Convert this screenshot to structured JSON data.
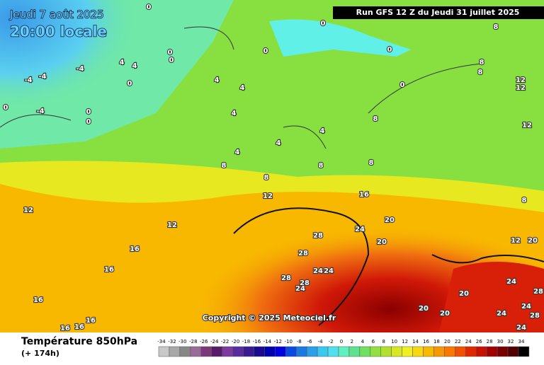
{
  "header": {
    "date": "Jeudi 7 août 2025",
    "time": "20:00 locale",
    "run": "Run GFS 12 Z du Jeudi 31 juillet 2025"
  },
  "map": {
    "copyright": "Copyright © 2025 Meteociel.fr",
    "contour_labels": [
      0,
      0,
      0,
      0,
      0,
      0,
      0,
      0,
      0,
      0,
      0,
      4,
      4,
      -4,
      -4,
      -4,
      -4,
      4,
      4,
      4,
      4,
      4,
      4,
      8,
      8,
      8,
      8,
      8,
      8,
      8,
      8,
      8,
      12,
      12,
      12,
      12,
      12,
      12,
      12,
      16,
      16,
      16,
      16,
      16,
      16,
      16,
      20,
      20,
      20,
      20,
      20,
      20,
      24,
      24,
      24,
      24,
      24,
      24,
      24,
      24,
      28,
      28,
      28,
      28,
      28,
      28
    ]
  },
  "legend": {
    "title": "Température 850hPa",
    "subtitle": "(+ 174h)",
    "ticks": [
      -34,
      -32,
      -30,
      -28,
      -26,
      -24,
      -22,
      -20,
      -18,
      -16,
      -14,
      -12,
      -10,
      -8,
      -6,
      -4,
      -2,
      0,
      2,
      4,
      6,
      8,
      10,
      12,
      14,
      16,
      18,
      20,
      22,
      24,
      26,
      28,
      30,
      32,
      34
    ],
    "colors": [
      "#c8c8c8",
      "#a8a8a8",
      "#888888",
      "#9a6a9a",
      "#7a3a7a",
      "#5a1a6a",
      "#7a3aa0",
      "#5a2aa0",
      "#3a1a90",
      "#1a0a90",
      "#0000b0",
      "#0000e0",
      "#0a4ae0",
      "#1a7ae0",
      "#2aa0e8",
      "#3ac8f0",
      "#50e0f0",
      "#60f0c0",
      "#60e090",
      "#70e060",
      "#90e040",
      "#b0e030",
      "#d8e820",
      "#f0f020",
      "#f8d810",
      "#f8b800",
      "#f89800",
      "#f87800",
      "#f05000",
      "#e02800",
      "#c81000",
      "#a00000",
      "#780000",
      "#500000",
      "#000000"
    ]
  }
}
